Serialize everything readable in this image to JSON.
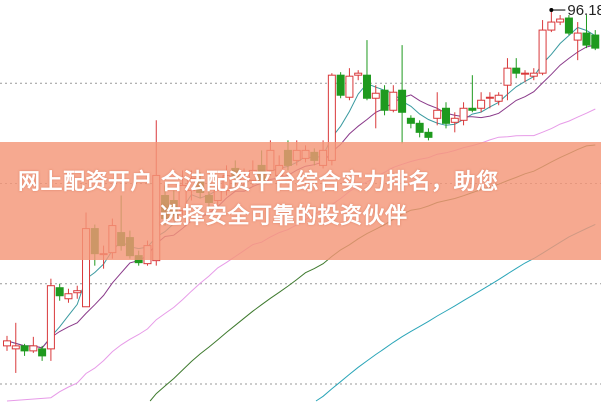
{
  "headline": {
    "line1": "网上配资开户 合法配资平台综合实力排名，助您",
    "line2": "选择安全可靠的投资伙伴"
  },
  "chart_data": {
    "type": "candlestick",
    "title": "",
    "xlabel": "",
    "ylabel": "",
    "ylim": [
      57.08,
      97.18
    ],
    "grid": {
      "horizontal_dotted": [
        88.88,
        78.88,
        68.88,
        58.88
      ]
    },
    "colors": {
      "up": "#d9383a",
      "down": "#1e9a1e",
      "ma5": "#3a9aa0",
      "ma10": "#8a3a8a",
      "ma20": "#e79be8",
      "ma30": "#3e7a2e",
      "ma60": "#2aa5b8",
      "grid": "#999999"
    },
    "moving_averages": [
      "ma5",
      "ma10",
      "ma20",
      "ma30",
      "ma60"
    ],
    "annotation": {
      "label": "96.18",
      "value": 96.18,
      "candle_index": 62
    },
    "candles": [
      [
        62.68,
        63.18,
        63.68,
        62.18
      ],
      [
        62.38,
        62.68,
        64.98,
        59.98
      ],
      [
        62.68,
        62.18,
        62.88,
        61.68
      ],
      [
        62.18,
        62.68,
        63.58,
        61.98
      ],
      [
        62.38,
        61.68,
        62.68,
        61.18
      ],
      [
        62.38,
        68.68,
        69.38,
        61.18
      ],
      [
        68.48,
        67.68,
        68.88,
        67.18
      ],
      [
        67.38,
        67.88,
        68.38,
        66.98
      ],
      [
        67.98,
        68.18,
        68.68,
        67.38
      ],
      [
        66.58,
        74.38,
        75.98,
        66.58
      ],
      [
        74.38,
        71.88,
        74.78,
        70.68
      ],
      [
        71.78,
        71.88,
        72.68,
        70.38
      ],
      [
        71.98,
        74.68,
        75.38,
        71.38
      ],
      [
        73.98,
        72.68,
        77.68,
        72.18
      ],
      [
        73.48,
        71.68,
        74.18,
        71.38
      ],
      [
        71.68,
        70.98,
        72.18,
        70.68
      ],
      [
        70.88,
        72.68,
        73.18,
        70.68
      ],
      [
        71.18,
        79.68,
        85.18,
        70.68
      ],
      [
        77.68,
        75.38,
        78.68,
        74.68
      ],
      [
        77.18,
        75.68,
        78.18,
        75.18
      ],
      [
        76.18,
        78.68,
        80.18,
        75.68
      ],
      [
        78.18,
        79.38,
        80.18,
        77.18
      ],
      [
        79.18,
        77.98,
        79.98,
        77.38
      ],
      [
        77.68,
        76.98,
        78.68,
        76.18
      ],
      [
        77.18,
        78.18,
        78.68,
        76.68
      ],
      [
        78.18,
        79.68,
        80.68,
        77.68
      ],
      [
        80.38,
        79.38,
        81.18,
        78.68
      ],
      [
        79.18,
        79.68,
        80.38,
        78.68
      ],
      [
        79.18,
        80.18,
        81.18,
        78.68
      ],
      [
        80.68,
        79.18,
        82.18,
        78.68
      ],
      [
        80.18,
        82.18,
        83.18,
        79.68
      ],
      [
        79.68,
        80.68,
        81.68,
        79.18
      ],
      [
        82.18,
        80.68,
        83.18,
        80.18
      ],
      [
        81.18,
        82.18,
        83.18,
        80.68
      ],
      [
        81.38,
        82.18,
        82.68,
        80.98
      ],
      [
        81.98,
        81.18,
        82.38,
        80.68
      ],
      [
        80.68,
        82.18,
        83.18,
        80.38
      ],
      [
        81.18,
        89.68,
        89.88,
        80.68
      ],
      [
        89.68,
        87.68,
        89.98,
        87.38
      ],
      [
        87.48,
        89.58,
        90.38,
        87.18
      ],
      [
        89.68,
        89.88,
        90.18,
        89.18
      ],
      [
        89.68,
        87.38,
        93.18,
        87.18
      ],
      [
        87.38,
        87.88,
        88.68,
        84.38
      ],
      [
        88.18,
        86.18,
        88.68,
        85.68
      ],
      [
        86.18,
        87.98,
        88.68,
        85.98
      ],
      [
        88.18,
        85.98,
        92.68,
        82.88
      ],
      [
        85.38,
        84.88,
        85.68,
        84.38
      ],
      [
        84.88,
        83.98,
        85.18,
        83.48
      ],
      [
        83.98,
        83.48,
        84.38,
        83.18
      ],
      [
        85.38,
        86.18,
        87.98,
        84.68
      ],
      [
        86.38,
        84.88,
        86.98,
        84.38
      ],
      [
        84.98,
        85.38,
        85.98,
        83.98
      ],
      [
        85.18,
        86.38,
        86.98,
        84.68
      ],
      [
        86.38,
        86.18,
        89.68,
        85.98
      ],
      [
        86.38,
        87.18,
        87.98,
        85.98
      ],
      [
        87.38,
        87.48,
        87.98,
        86.38
      ],
      [
        87.08,
        87.68,
        87.98,
        86.68
      ],
      [
        88.68,
        90.38,
        91.38,
        87.18
      ],
      [
        90.38,
        89.88,
        91.38,
        89.38
      ],
      [
        89.78,
        89.88,
        90.18,
        88.98
      ],
      [
        89.58,
        89.88,
        90.38,
        89.18
      ],
      [
        89.88,
        94.18,
        95.18,
        89.68
      ],
      [
        94.18,
        94.98,
        96.18,
        93.98
      ],
      [
        94.98,
        95.28,
        95.68,
        94.68
      ],
      [
        95.38,
        93.88,
        95.68,
        93.68
      ],
      [
        93.18,
        93.88,
        94.98,
        91.18
      ],
      [
        93.88,
        92.68,
        95.68,
        92.38
      ],
      [
        93.68,
        92.38,
        94.18,
        92.18
      ]
    ]
  }
}
